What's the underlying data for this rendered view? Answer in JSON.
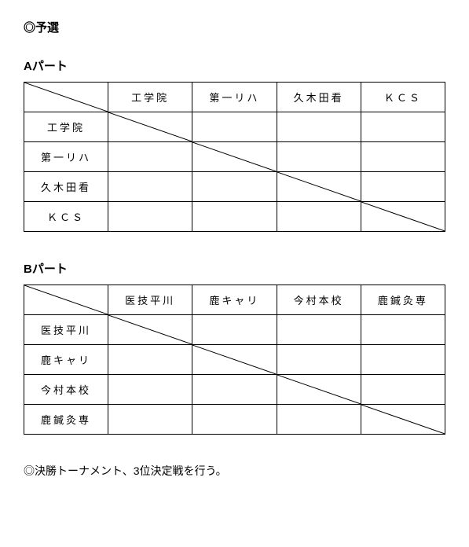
{
  "page_title": "◎予選",
  "parts": [
    {
      "title": "Aパート",
      "teams": [
        "工学院",
        "第一リハ",
        "久木田看",
        "ＫＣＳ"
      ]
    },
    {
      "title": "Bパート",
      "teams": [
        "医技平川",
        "鹿キャリ",
        "今村本校",
        "鹿鍼灸専"
      ]
    }
  ],
  "footer_note": "◎決勝トーナメント、3位決定戦を行う。"
}
